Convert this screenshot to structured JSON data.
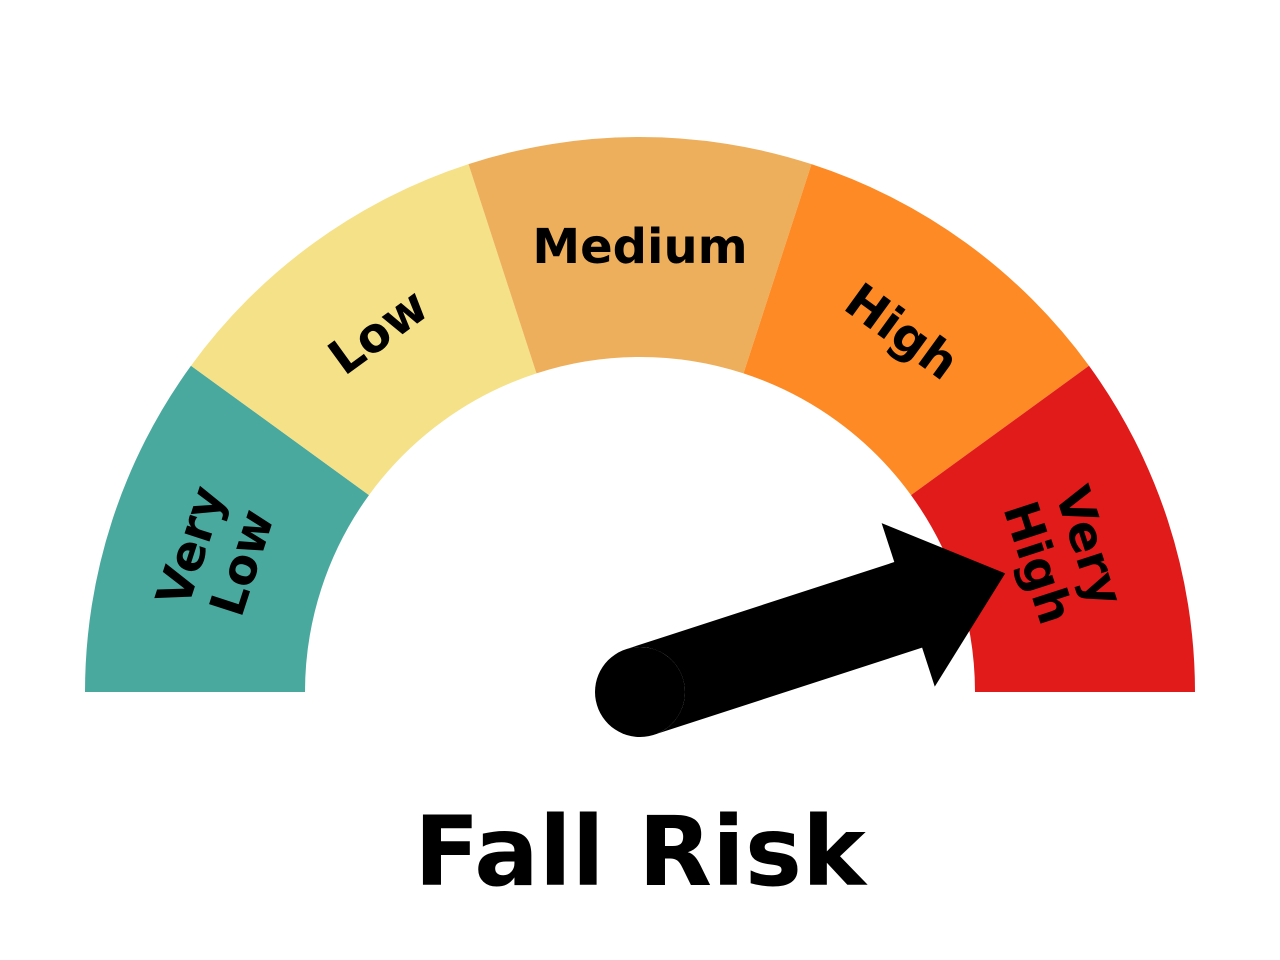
{
  "chart_data": {
    "type": "gauge",
    "title": "Fall Risk",
    "segments": [
      {
        "label": [
          "Very",
          "Low"
        ],
        "color": "#4aa99e"
      },
      {
        "label": [
          "Low"
        ],
        "color": "#f5e187"
      },
      {
        "label": [
          "Medium"
        ],
        "color": "#edaf5b"
      },
      {
        "label": [
          "High"
        ],
        "color": "#fd8a25"
      },
      {
        "label": [
          "Very",
          "High"
        ],
        "color": "#e11b1a"
      }
    ],
    "needle": {
      "segment": "Very High",
      "color": "#000000"
    }
  }
}
